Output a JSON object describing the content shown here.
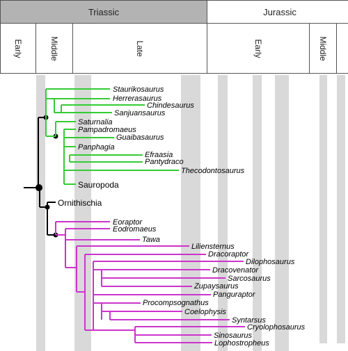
{
  "timescale": {
    "periods": [
      {
        "label": "Triassic",
        "color": "#b3b3b3"
      },
      {
        "label": "Jurassic",
        "color": "#ffffff"
      }
    ],
    "epochs": [
      {
        "label": "Early"
      },
      {
        "label": "Middle"
      },
      {
        "label": "Late"
      },
      {
        "label": "Early"
      },
      {
        "label": "Middle"
      }
    ]
  },
  "colors": {
    "sauropodomorph_branch": "#33cc33",
    "theropod_branch": "#cc33cc",
    "root_branch": "#000000",
    "stage_band": "#d9d9d9"
  },
  "saurischian_taxa": {
    "staurikosaurus": "Staurikosaurus",
    "herrerasaurus": "Herrerasaurus",
    "chindesaurus": "Chindesaurus",
    "sanjuansaurus": "Sanjuansaurus",
    "saturnalia": "Saturnalia",
    "pampadromaeus": "Pampadromaeus",
    "guaibasaurus": "Guaibasaurus",
    "panphagia": "Panphagia",
    "efraasia": "Efraasia",
    "pantydraco": "Pantydraco",
    "thecodontosaurus": "Thecodontosaurus",
    "sauropoda": "Sauropoda"
  },
  "ornithischia_label": "Ornithischia",
  "theropod_taxa": {
    "eoraptor": "Eoraptor",
    "eodromaeus": "Eodromaeus",
    "tawa": "Tawa",
    "liliensternus": "Liliensternus",
    "dracoraptor": "Dracoraptor",
    "dilophosaurus": "Dilophosaurus",
    "dracovenator": "Dracovenator",
    "sarcosaurus": "Sarcosaurus",
    "zupaysaurus": "Zupaysaurus",
    "panguraptor": "Panguraptor",
    "procompsognathus": "Procompsognathus",
    "coelophysis": "Coelophysis",
    "syntarsus": "Syntarsus",
    "cryolophosaurus": "Cryolophosaurus",
    "sinosaurus": "Sinosaurus",
    "lophostropheus": "Lophostropheus"
  }
}
